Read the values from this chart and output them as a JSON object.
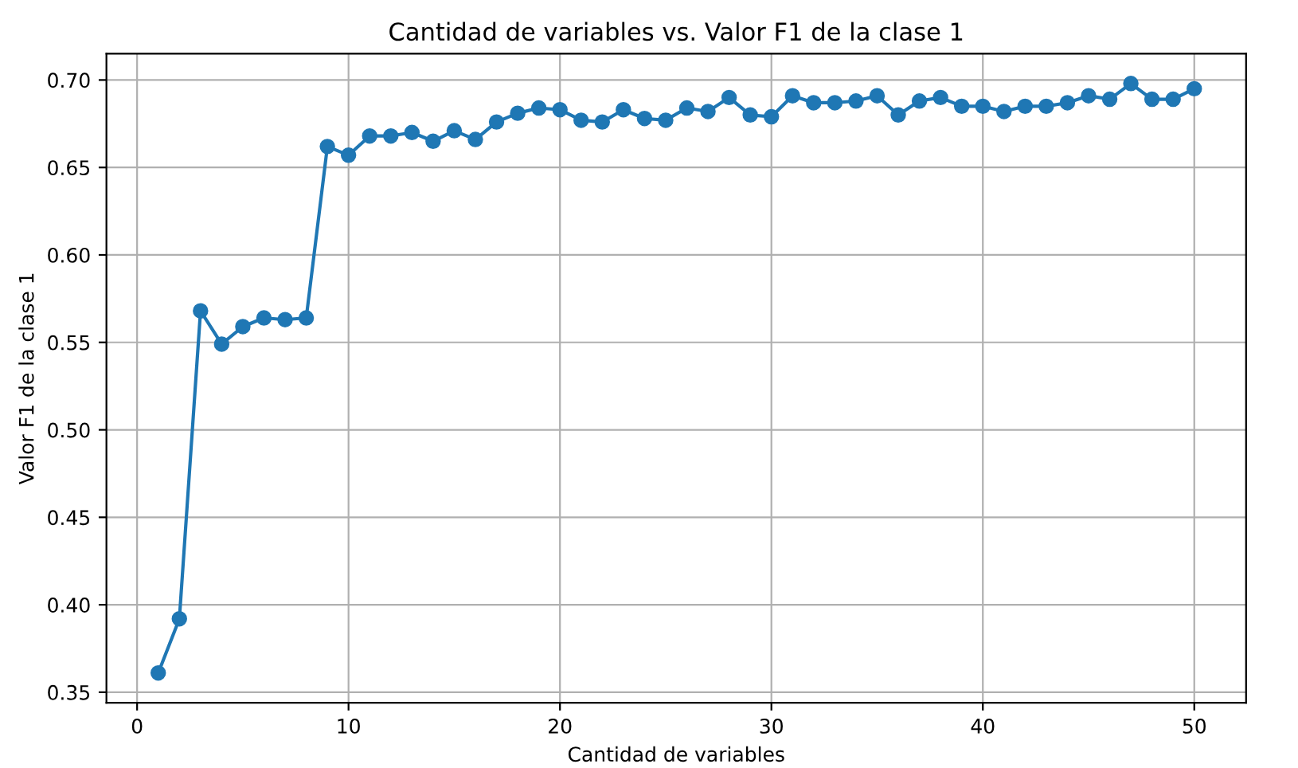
{
  "chart_data": {
    "type": "line",
    "title": "Cantidad de variables vs. Valor F1 de la clase 1",
    "xlabel": "Cantidad de variables",
    "ylabel": "Valor F1 de la clase 1",
    "x": [
      1,
      2,
      3,
      4,
      5,
      6,
      7,
      8,
      9,
      10,
      11,
      12,
      13,
      14,
      15,
      16,
      17,
      18,
      19,
      20,
      21,
      22,
      23,
      24,
      25,
      26,
      27,
      28,
      29,
      30,
      31,
      32,
      33,
      34,
      35,
      36,
      37,
      38,
      39,
      40,
      41,
      42,
      43,
      44,
      45,
      46,
      47,
      48,
      49,
      50
    ],
    "series": [
      {
        "color": "#1f77b4",
        "values": [
          0.361,
          0.392,
          0.568,
          0.549,
          0.559,
          0.564,
          0.563,
          0.564,
          0.662,
          0.657,
          0.668,
          0.668,
          0.67,
          0.665,
          0.671,
          0.666,
          0.676,
          0.681,
          0.684,
          0.683,
          0.677,
          0.676,
          0.683,
          0.678,
          0.677,
          0.684,
          0.682,
          0.69,
          0.68,
          0.679,
          0.691,
          0.687,
          0.687,
          0.688,
          0.691,
          0.68,
          0.688,
          0.69,
          0.685,
          0.685,
          0.682,
          0.685,
          0.685,
          0.687,
          0.691,
          0.689,
          0.698,
          0.689,
          0.689,
          0.695
        ]
      }
    ],
    "xlim": [
      -1.45,
      52.45
    ],
    "ylim": [
      0.344,
      0.715
    ],
    "xticks": [
      0,
      10,
      20,
      30,
      40,
      50
    ],
    "yticks": [
      {
        "value": 0.35,
        "label": "0.35"
      },
      {
        "value": 0.4,
        "label": "0.40"
      },
      {
        "value": 0.45,
        "label": "0.45"
      },
      {
        "value": 0.5,
        "label": "0.50"
      },
      {
        "value": 0.55,
        "label": "0.55"
      },
      {
        "value": 0.6,
        "label": "0.60"
      },
      {
        "value": 0.65,
        "label": "0.65"
      },
      {
        "value": 0.7,
        "label": "0.70"
      }
    ],
    "grid": true,
    "marker": "circle",
    "line_style": "solid"
  }
}
